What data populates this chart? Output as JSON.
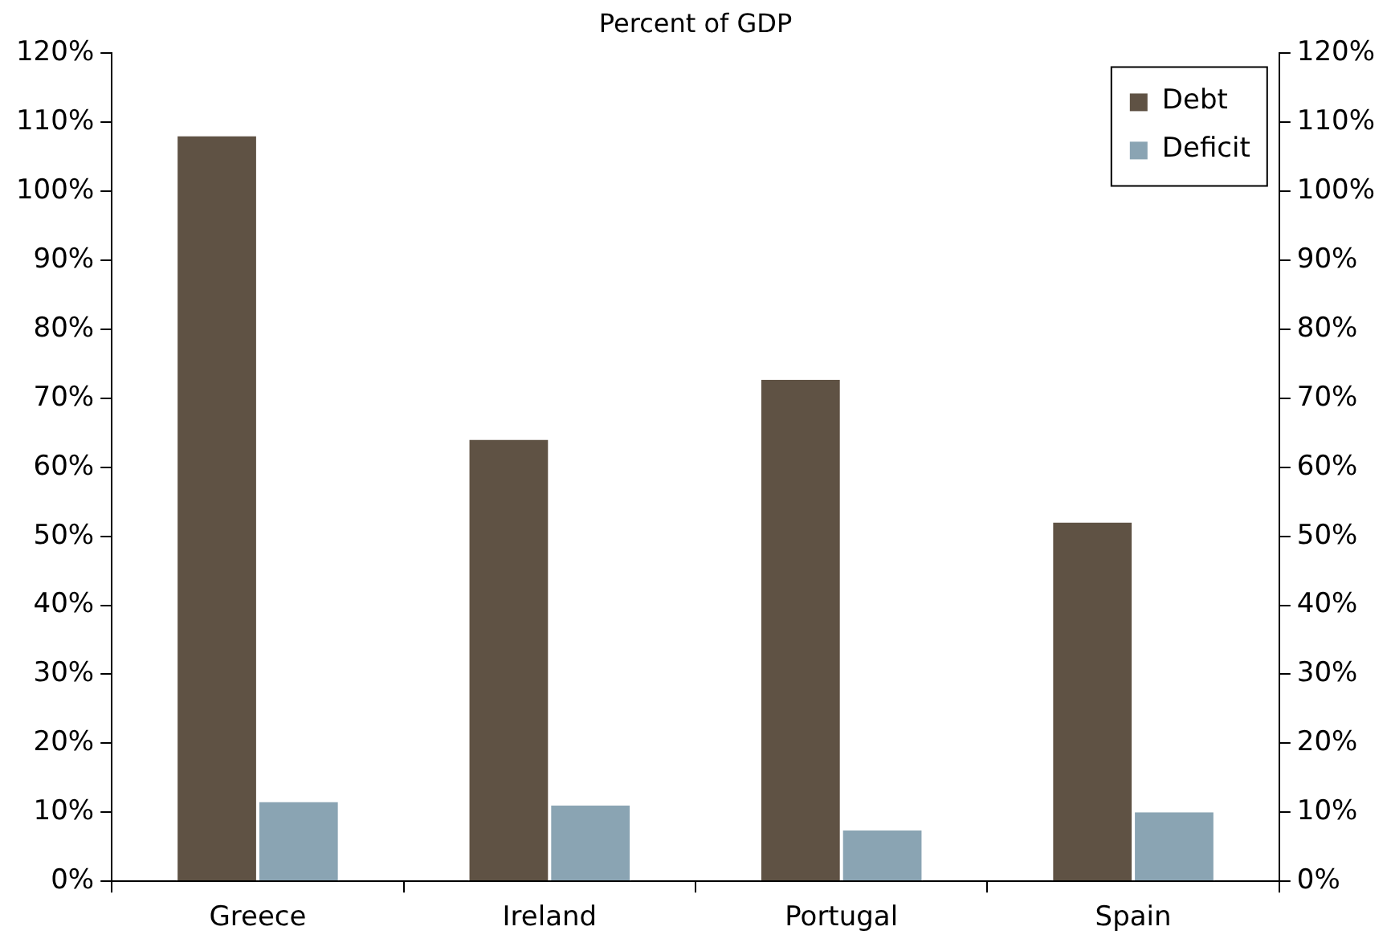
{
  "chart_data": {
    "type": "bar",
    "title": "Percent of GDP",
    "categories": [
      "Greece",
      "Ireland",
      "Portugal",
      "Spain"
    ],
    "series": [
      {
        "name": "Debt",
        "color": "#5f5244",
        "values": [
          108,
          64,
          72.7,
          52
        ]
      },
      {
        "name": "Deficit",
        "color": "#8aa4b3",
        "values": [
          11.5,
          11,
          7.4,
          10
        ]
      }
    ],
    "ylim": [
      0,
      120
    ],
    "yticks": [
      {
        "value": 0,
        "label": "0%"
      },
      {
        "value": 10,
        "label": "10%"
      },
      {
        "value": 20,
        "label": "20%"
      },
      {
        "value": 30,
        "label": "30%"
      },
      {
        "value": 40,
        "label": "40%"
      },
      {
        "value": 50,
        "label": "50%"
      },
      {
        "value": 60,
        "label": "60%"
      },
      {
        "value": 70,
        "label": "70%"
      },
      {
        "value": 80,
        "label": "80%"
      },
      {
        "value": 90,
        "label": "90%"
      },
      {
        "value": 100,
        "label": "100%"
      },
      {
        "value": 110,
        "label": "110%"
      },
      {
        "value": 120,
        "label": "120%"
      }
    ],
    "y2lim": [
      0,
      120
    ],
    "y2ticks": [
      {
        "value": 0,
        "label": "0%"
      },
      {
        "value": 10,
        "label": "10%"
      },
      {
        "value": 20,
        "label": "20%"
      },
      {
        "value": 30,
        "label": "30%"
      },
      {
        "value": 40,
        "label": "40%"
      },
      {
        "value": 50,
        "label": "50%"
      },
      {
        "value": 60,
        "label": "60%"
      },
      {
        "value": 70,
        "label": "70%"
      },
      {
        "value": 80,
        "label": "80%"
      },
      {
        "value": 90,
        "label": "90%"
      },
      {
        "value": 100,
        "label": "100%"
      },
      {
        "value": 110,
        "label": "110%"
      },
      {
        "value": 120,
        "label": "120%"
      }
    ],
    "grid": false,
    "legend": "top right"
  }
}
